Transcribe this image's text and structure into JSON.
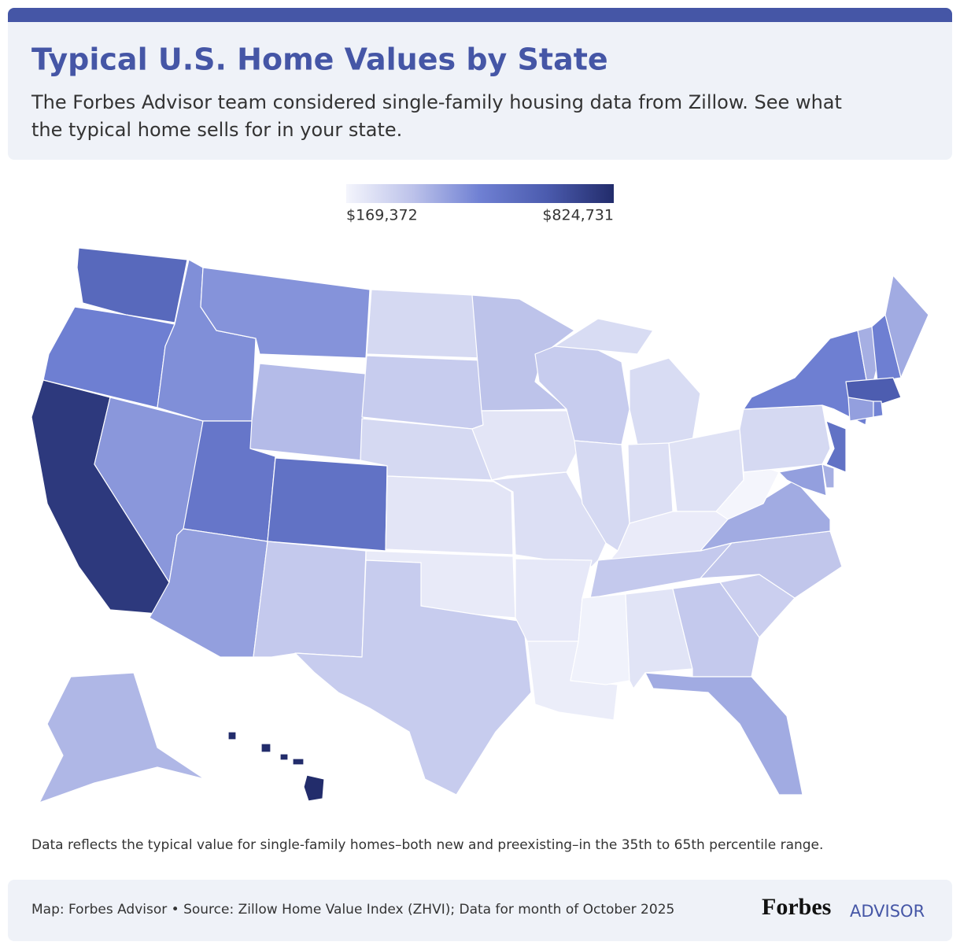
{
  "chart_data": {
    "type": "choropleth",
    "title": "Typical U.S. Home Values by State",
    "subtitle": [
      "The Forbes Advisor team considered single-family housing data from Zillow. See what",
      "the typical home sells for in your state."
    ],
    "clim": [
      169372,
      824731
    ],
    "cticks": [
      {
        "value": 169372,
        "label": "$169,372"
      },
      {
        "value": 824731,
        "label": "$824,731"
      }
    ],
    "colors": [
      "#f4f5fc",
      "#bcc2ea",
      "#6f80d3",
      "#4b5bae",
      "#222c6b"
    ],
    "values": [
      600000,
      500000,
      780000,
      440000,
      460000,
      450000,
      350000,
      540000,
      560000,
      420000,
      310000,
      260000,
      300000,
      260000,
      220000,
      205000,
      300000,
      330000,
      220000,
      240000,
      210000,
      195000,
      300000,
      260000,
      250000,
      240000,
      230000,
      200000,
      310000,
      180000,
      225000,
      310000,
      390000,
      290000,
      320000,
      390000,
      169372,
      260000,
      500000,
      560000,
      380000,
      420000,
      380000,
      500000,
      390000,
      650000,
      420000,
      490000,
      360000,
      824731
    ],
    "note": "Data reflects the typical value for single-family homes–both new and preexisting–in the 35th to 65th percentile range.",
    "source": "Map: Forbes Advisor • Source: Zillow Home Value Index (ZHVI); Data for month of October 2025",
    "brand": [
      "Forbes",
      "ADVISOR"
    ]
  }
}
